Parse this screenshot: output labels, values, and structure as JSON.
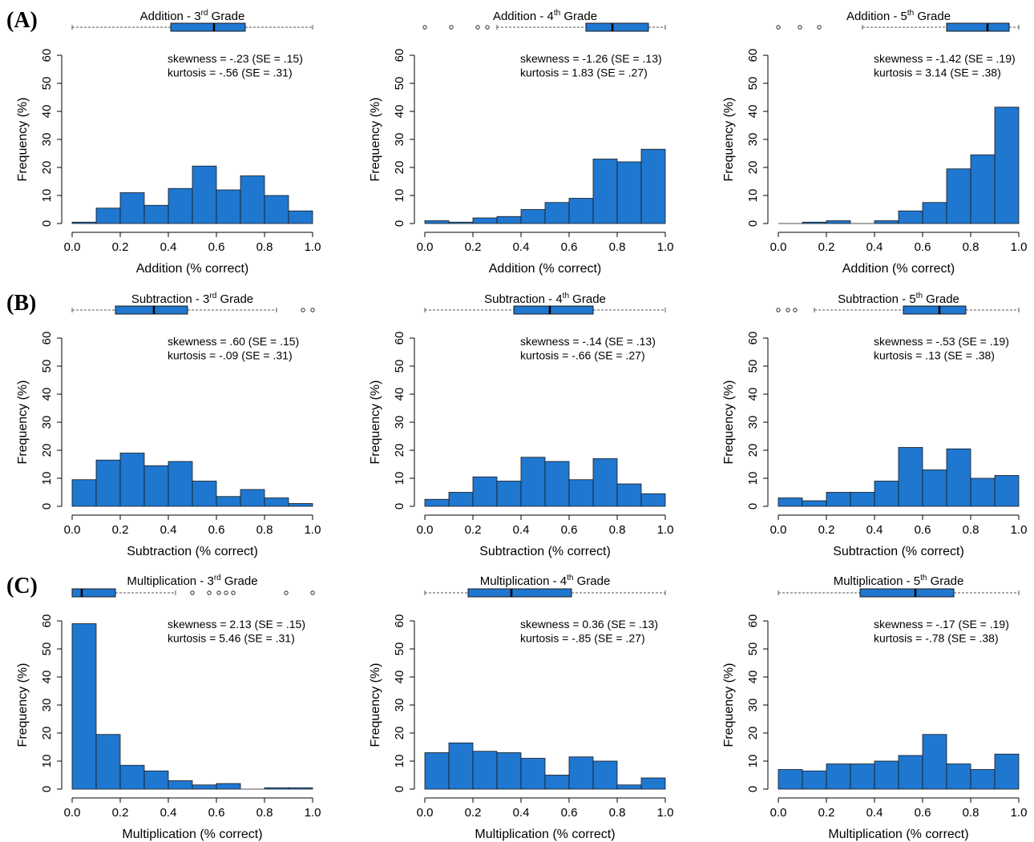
{
  "row_labels": [
    "(A)",
    "(B)",
    "(C)"
  ],
  "y_axis_label": "Frequency (%)",
  "x_ticks": [
    "0.0",
    "0.2",
    "0.4",
    "0.6",
    "0.8",
    "1.0"
  ],
  "y_ticks": [
    "0",
    "10",
    "20",
    "30",
    "40",
    "50",
    "60"
  ],
  "colors": {
    "bar_fill": "#1f77d0",
    "bar_stroke": "#1a1a1a",
    "axis": "#000000",
    "whisker": "#555555"
  },
  "chart_data": [
    {
      "type": "bar",
      "row": 0,
      "col": 0,
      "title": "Addition - 3",
      "title_sup": "rd",
      "title_suffix": " Grade",
      "xlabel": "Addition (% correct)",
      "ylabel": "Frequency (%)",
      "xlim": [
        0,
        1
      ],
      "ylim": [
        0,
        60
      ],
      "bin_edges": [
        0,
        0.1,
        0.2,
        0.3,
        0.4,
        0.5,
        0.6,
        0.7,
        0.8,
        0.9,
        1.0
      ],
      "values": [
        0.5,
        5.5,
        11,
        6.5,
        12.5,
        20.5,
        12,
        17,
        10,
        4.5
      ],
      "stats": [
        "skewness = -.23 (SE = .15)",
        "kurtosis = -.56 (SE = .31)"
      ],
      "boxplot": {
        "wmin": 0.0,
        "q1": 0.41,
        "median": 0.59,
        "q3": 0.72,
        "wmax": 1.0,
        "outliers": []
      }
    },
    {
      "type": "bar",
      "row": 0,
      "col": 1,
      "title": "Addition - 4",
      "title_sup": "th",
      "title_suffix": " Grade",
      "xlabel": "Addition (% correct)",
      "ylabel": "Frequency (%)",
      "xlim": [
        0,
        1
      ],
      "ylim": [
        0,
        60
      ],
      "bin_edges": [
        0,
        0.1,
        0.2,
        0.3,
        0.4,
        0.5,
        0.6,
        0.7,
        0.8,
        0.9,
        1.0
      ],
      "values": [
        1,
        0.5,
        2,
        2.5,
        5,
        7.5,
        9,
        23,
        22,
        26.5
      ],
      "stats": [
        "skewness = -1.26 (SE = .13)",
        "kurtosis = 1.83 (SE = .27)"
      ],
      "boxplot": {
        "wmin": 0.3,
        "q1": 0.67,
        "median": 0.78,
        "q3": 0.93,
        "wmax": 1.0,
        "outliers": [
          0.0,
          0.11,
          0.22,
          0.26
        ]
      }
    },
    {
      "type": "bar",
      "row": 0,
      "col": 2,
      "title": "Addition - 5",
      "title_sup": "th",
      "title_suffix": " Grade",
      "xlabel": "Addition (% correct)",
      "ylabel": "Frequency (%)",
      "xlim": [
        0,
        1
      ],
      "ylim": [
        0,
        60
      ],
      "bin_edges": [
        0,
        0.1,
        0.2,
        0.3,
        0.4,
        0.5,
        0.6,
        0.7,
        0.8,
        0.9,
        1.0
      ],
      "values": [
        0,
        0.5,
        1,
        0,
        1,
        4.5,
        7.5,
        19.5,
        24.5,
        41.5
      ],
      "stats": [
        "skewness = -1.42 (SE = .19)",
        "kurtosis = 3.14 (SE = .38)"
      ],
      "boxplot": {
        "wmin": 0.35,
        "q1": 0.7,
        "median": 0.87,
        "q3": 0.96,
        "wmax": 1.0,
        "outliers": [
          0.0,
          0.09,
          0.17
        ]
      }
    },
    {
      "type": "bar",
      "row": 1,
      "col": 0,
      "title": "Subtraction - 3",
      "title_sup": "rd",
      "title_suffix": " Grade",
      "xlabel": "Subtraction (% correct)",
      "ylabel": "Frequency (%)",
      "xlim": [
        0,
        1
      ],
      "ylim": [
        0,
        60
      ],
      "bin_edges": [
        0,
        0.1,
        0.2,
        0.3,
        0.4,
        0.5,
        0.6,
        0.7,
        0.8,
        0.9,
        1.0
      ],
      "values": [
        9.5,
        16.5,
        19,
        14.5,
        16,
        9,
        3.5,
        6,
        3,
        1
      ],
      "stats": [
        "skewness = .60 (SE = .15)",
        "kurtosis = -.09 (SE = .31)"
      ],
      "boxplot": {
        "wmin": 0.0,
        "q1": 0.18,
        "median": 0.34,
        "q3": 0.48,
        "wmax": 0.85,
        "outliers": [
          0.96,
          1.0
        ]
      }
    },
    {
      "type": "bar",
      "row": 1,
      "col": 1,
      "title": "Subtraction - 4",
      "title_sup": "th",
      "title_suffix": " Grade",
      "xlabel": "Subtraction (% correct)",
      "ylabel": "Frequency (%)",
      "xlim": [
        0,
        1
      ],
      "ylim": [
        0,
        60
      ],
      "bin_edges": [
        0,
        0.1,
        0.2,
        0.3,
        0.4,
        0.5,
        0.6,
        0.7,
        0.8,
        0.9,
        1.0
      ],
      "values": [
        2.5,
        5,
        10.5,
        9,
        17.5,
        16,
        9.5,
        17,
        8,
        4.5
      ],
      "stats": [
        "skewness = -.14 (SE = .13)",
        "kurtosis = -.66 (SE = .27)"
      ],
      "boxplot": {
        "wmin": 0.0,
        "q1": 0.37,
        "median": 0.52,
        "q3": 0.7,
        "wmax": 1.0,
        "outliers": []
      }
    },
    {
      "type": "bar",
      "row": 1,
      "col": 2,
      "title": "Subtraction - 5",
      "title_sup": "th",
      "title_suffix": " Grade",
      "xlabel": "Subtraction (% correct)",
      "ylabel": "Frequency (%)",
      "xlim": [
        0,
        1
      ],
      "ylim": [
        0,
        60
      ],
      "bin_edges": [
        0,
        0.1,
        0.2,
        0.3,
        0.4,
        0.5,
        0.6,
        0.7,
        0.8,
        0.9,
        1.0
      ],
      "values": [
        3,
        2,
        5,
        5,
        9,
        21,
        13,
        20.5,
        10,
        11
      ],
      "stats": [
        "skewness = -.53 (SE = .19)",
        "kurtosis = .13 (SE = .38)"
      ],
      "boxplot": {
        "wmin": 0.15,
        "q1": 0.52,
        "median": 0.67,
        "q3": 0.78,
        "wmax": 1.0,
        "outliers": [
          0.0,
          0.04,
          0.07
        ]
      }
    },
    {
      "type": "bar",
      "row": 2,
      "col": 0,
      "title": "Multiplication - 3",
      "title_sup": "rd",
      "title_suffix": " Grade",
      "xlabel": "Multiplication (% correct)",
      "ylabel": "Frequency (%)",
      "xlim": [
        0,
        1
      ],
      "ylim": [
        0,
        60
      ],
      "bin_edges": [
        0,
        0.1,
        0.2,
        0.3,
        0.4,
        0.5,
        0.6,
        0.7,
        0.8,
        0.9,
        1.0
      ],
      "values": [
        59,
        19.5,
        8.5,
        6.5,
        3,
        1.5,
        2,
        0,
        0.5,
        0.5
      ],
      "stats": [
        "skewness = 2.13 (SE = .15)",
        "kurtosis = 5.46 (SE = .31)"
      ],
      "boxplot": {
        "wmin": 0.0,
        "q1": 0.0,
        "median": 0.04,
        "q3": 0.18,
        "wmax": 0.43,
        "outliers": [
          0.5,
          0.57,
          0.61,
          0.64,
          0.67,
          0.89,
          1.0
        ]
      }
    },
    {
      "type": "bar",
      "row": 2,
      "col": 1,
      "title": "Multiplication - 4",
      "title_sup": "th",
      "title_suffix": " Grade",
      "xlabel": "Multiplication (% correct)",
      "ylabel": "Frequency (%)",
      "xlim": [
        0,
        1
      ],
      "ylim": [
        0,
        60
      ],
      "bin_edges": [
        0,
        0.1,
        0.2,
        0.3,
        0.4,
        0.5,
        0.6,
        0.7,
        0.8,
        0.9,
        1.0
      ],
      "values": [
        13,
        16.5,
        13.5,
        13,
        11,
        5,
        11.5,
        10,
        1.5,
        4
      ],
      "stats": [
        "skewness = 0.36 (SE = .13)",
        "kurtosis = -.85 (SE = .27)"
      ],
      "boxplot": {
        "wmin": 0.0,
        "q1": 0.18,
        "median": 0.36,
        "q3": 0.61,
        "wmax": 1.0,
        "outliers": []
      }
    },
    {
      "type": "bar",
      "row": 2,
      "col": 2,
      "title": "Multiplication - 5",
      "title_sup": "th",
      "title_suffix": " Grade",
      "xlabel": "Multiplication (% correct)",
      "ylabel": "Frequency (%)",
      "xlim": [
        0,
        1
      ],
      "ylim": [
        0,
        60
      ],
      "bin_edges": [
        0,
        0.1,
        0.2,
        0.3,
        0.4,
        0.5,
        0.6,
        0.7,
        0.8,
        0.9,
        1.0
      ],
      "values": [
        7,
        6.5,
        9,
        9,
        10,
        12,
        19.5,
        9,
        7,
        12.5
      ],
      "stats": [
        "skewness = -.17 (SE = .19)",
        "kurtosis = -.78 (SE = .38)"
      ],
      "boxplot": {
        "wmin": 0.0,
        "q1": 0.34,
        "median": 0.57,
        "q3": 0.73,
        "wmax": 1.0,
        "outliers": []
      }
    }
  ]
}
